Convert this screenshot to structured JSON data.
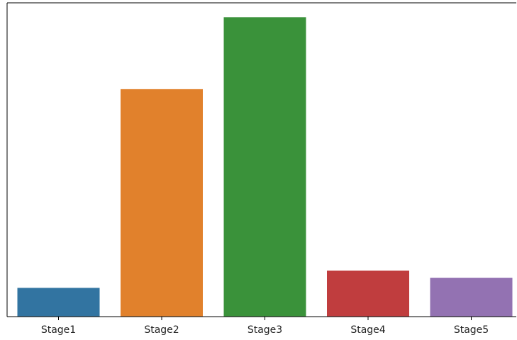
{
  "chart_data": {
    "type": "bar",
    "title": "",
    "xlabel": "",
    "ylabel": "",
    "categories": [
      "Stage1",
      "Stage2",
      "Stage3",
      "Stage4",
      "Stage5"
    ],
    "values": [
      10,
      79,
      104,
      16,
      13.5
    ],
    "ylim": [
      0,
      109
    ],
    "colors": [
      "#3274a1",
      "#e1812c",
      "#3a923a",
      "#c03d3e",
      "#9372b2"
    ],
    "grid": false,
    "legend": "none",
    "y_tick_labels_visible": false
  }
}
